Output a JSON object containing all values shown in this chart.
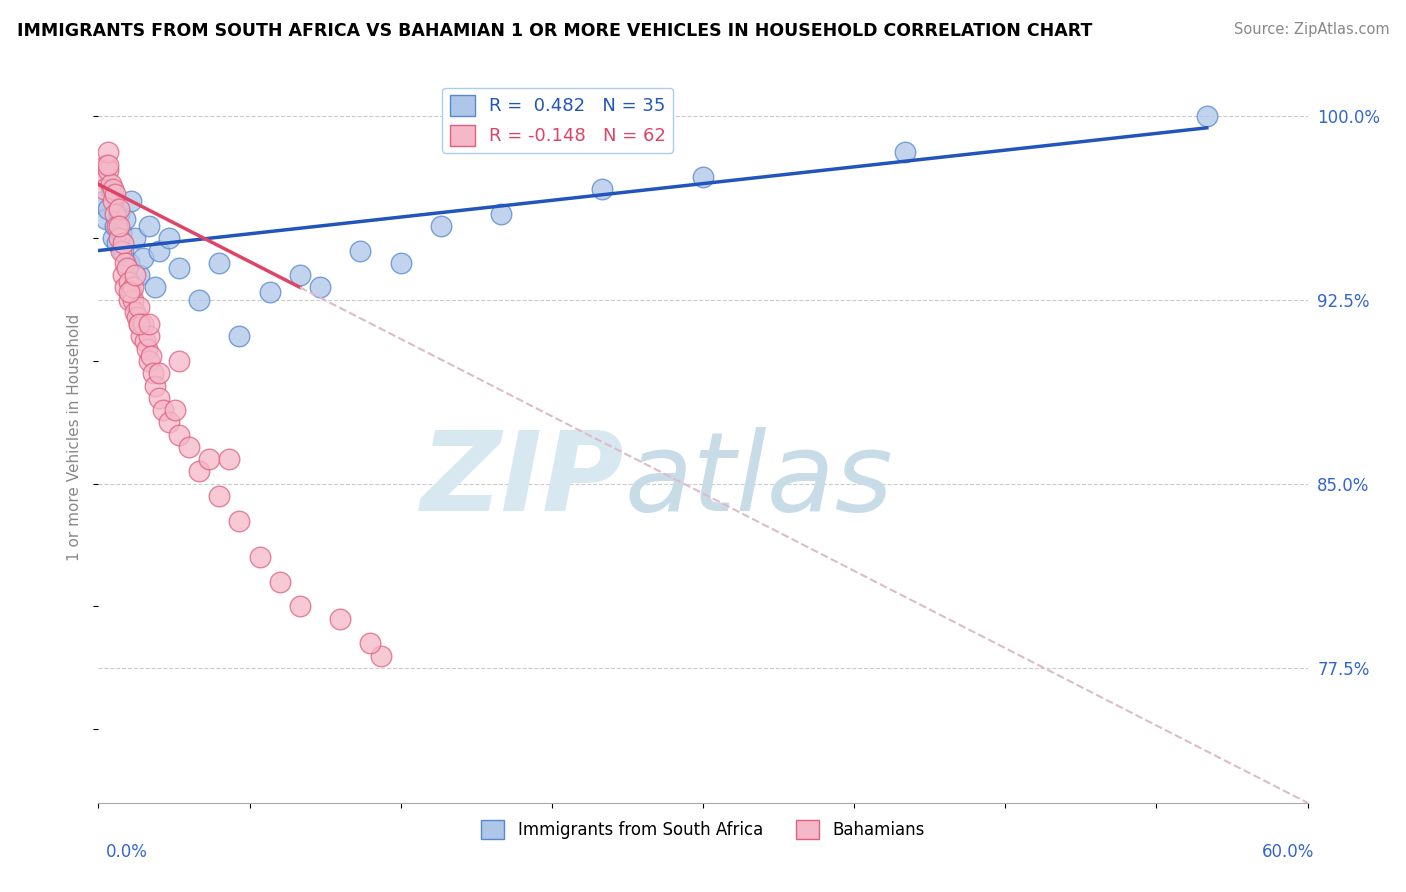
{
  "title": "IMMIGRANTS FROM SOUTH AFRICA VS BAHAMIAN 1 OR MORE VEHICLES IN HOUSEHOLD CORRELATION CHART",
  "source": "Source: ZipAtlas.com",
  "xmin": 0.0,
  "xmax": 60.0,
  "ymin": 72.0,
  "ymax": 101.8,
  "blue_R": 0.482,
  "blue_N": 35,
  "pink_R": -0.148,
  "pink_N": 62,
  "blue_color": "#aec6e8",
  "blue_edge": "#5588cc",
  "pink_color": "#f4b8c8",
  "pink_edge": "#e06080",
  "blue_trend_color": "#2255bb",
  "pink_trend_color": "#dd4466",
  "pink_dash_color": "#ddbbcc",
  "ylabel_label": "1 or more Vehicles in Household",
  "legend_label_blue": "Immigrants from South Africa",
  "legend_label_pink": "Bahamians",
  "blue_x": [
    0.3,
    0.4,
    0.5,
    0.6,
    0.7,
    0.8,
    0.9,
    1.0,
    1.1,
    1.2,
    1.3,
    1.5,
    1.6,
    1.8,
    2.0,
    2.2,
    2.5,
    2.8,
    3.0,
    3.5,
    4.0,
    5.0,
    6.0,
    7.0,
    8.5,
    10.0,
    11.0,
    13.0,
    15.0,
    17.0,
    20.0,
    25.0,
    30.0,
    40.0,
    55.0
  ],
  "blue_y": [
    96.5,
    95.8,
    96.2,
    97.0,
    95.0,
    95.5,
    94.8,
    96.0,
    95.2,
    94.5,
    95.8,
    94.0,
    96.5,
    95.0,
    93.5,
    94.2,
    95.5,
    93.0,
    94.5,
    95.0,
    93.8,
    92.5,
    94.0,
    91.0,
    92.8,
    93.5,
    93.0,
    94.5,
    94.0,
    95.5,
    96.0,
    97.0,
    97.5,
    98.5,
    100.0
  ],
  "pink_x": [
    0.2,
    0.3,
    0.4,
    0.5,
    0.5,
    0.6,
    0.7,
    0.7,
    0.8,
    0.8,
    0.9,
    1.0,
    1.0,
    1.1,
    1.2,
    1.2,
    1.3,
    1.3,
    1.4,
    1.5,
    1.5,
    1.6,
    1.7,
    1.7,
    1.8,
    1.9,
    2.0,
    2.0,
    2.1,
    2.2,
    2.3,
    2.4,
    2.5,
    2.5,
    2.6,
    2.7,
    2.8,
    3.0,
    3.0,
    3.2,
    3.5,
    3.8,
    4.0,
    4.5,
    5.0,
    5.5,
    6.0,
    7.0,
    8.0,
    9.0,
    10.0,
    12.0,
    14.0,
    1.5,
    2.0,
    1.0,
    0.5,
    1.8,
    2.5,
    4.0,
    6.5,
    13.5
  ],
  "pink_y": [
    97.5,
    97.0,
    98.0,
    97.8,
    98.5,
    97.2,
    96.5,
    97.0,
    96.8,
    96.0,
    95.5,
    96.2,
    95.0,
    94.5,
    94.8,
    93.5,
    94.0,
    93.0,
    93.8,
    92.5,
    93.2,
    92.8,
    92.5,
    93.0,
    92.0,
    91.8,
    91.5,
    92.2,
    91.0,
    91.5,
    90.8,
    90.5,
    90.0,
    91.0,
    90.2,
    89.5,
    89.0,
    88.5,
    89.5,
    88.0,
    87.5,
    88.0,
    87.0,
    86.5,
    85.5,
    86.0,
    84.5,
    83.5,
    82.0,
    81.0,
    80.0,
    79.5,
    78.0,
    92.8,
    91.5,
    95.5,
    98.0,
    93.5,
    91.5,
    90.0,
    86.0,
    78.5
  ],
  "pink_solid_end_x": 10.0,
  "blue_trend_x0": 0.0,
  "blue_trend_y0": 94.5,
  "blue_trend_x1": 55.0,
  "blue_trend_y1": 99.5,
  "pink_trend_x0": 0.0,
  "pink_trend_y0": 97.2,
  "pink_trend_x1": 60.0,
  "pink_trend_y1": 72.0
}
